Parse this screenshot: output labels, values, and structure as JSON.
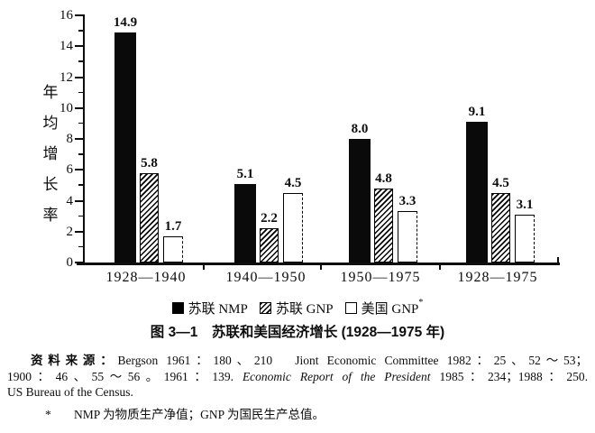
{
  "figure": {
    "caption": "图 3—1　苏联和美国经济增长 (1928—1975 年)",
    "source": {
      "label": "资料来源：",
      "line1_rest": "Bergson 1961：180、210　Jiont Economic Committee 1982：25、52～53；",
      "line2_pre": "1900：46、55～56。1961：139. ",
      "line2_italic": "Economic Report of the President",
      "line2_post": " 1985：234；1988：250.",
      "line3": "US Bureau of the Census.",
      "note_marker": "*",
      "note_text": "NMP 为物质生产净值；GNP 为国民生产总值。"
    }
  },
  "chart_data": {
    "type": "bar",
    "title": "图 3—1 苏联和美国经济增长 (1928—1975 年)",
    "ylabel": "年均增长率",
    "ylabel_orientation": "vertical",
    "ylim": [
      0,
      16
    ],
    "ytick_interval": 2,
    "grid": false,
    "value_labels": true,
    "legend_position": "bottom",
    "categories": [
      "1928—1940",
      "1940—1950",
      "1950—1975",
      "1928—1975"
    ],
    "series": [
      {
        "name": "苏联 NMP",
        "style": "solid-black",
        "values": [
          14.9,
          5.1,
          8.0,
          9.1
        ]
      },
      {
        "name": "苏联 GNP",
        "style": "hatched",
        "values": [
          5.8,
          2.2,
          4.8,
          4.5
        ]
      },
      {
        "name": "美国 GNP",
        "style": "white-outline",
        "note_marker": "*",
        "values": [
          1.7,
          4.5,
          3.3,
          3.1
        ]
      }
    ],
    "colors": {
      "ink": "#0d0d0d",
      "paper": "#ffffff"
    }
  }
}
